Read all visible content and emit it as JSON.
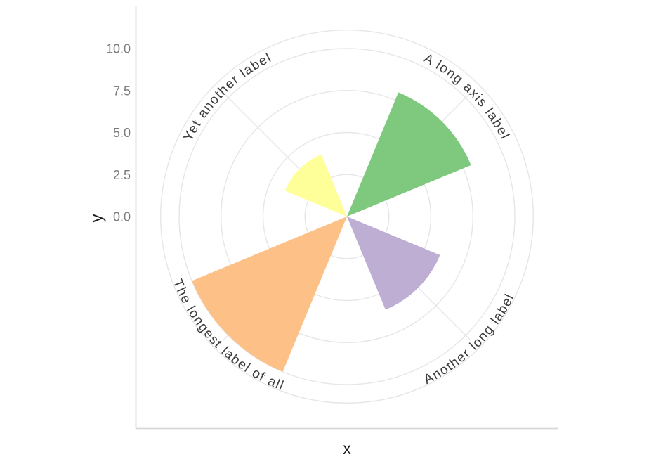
{
  "chart_data": {
    "type": "polar_bar",
    "title": "",
    "xlabel": "x",
    "ylabel": "y",
    "categories": [
      "A long axis label",
      "Another long label",
      "The longest label of all",
      "Yet another label"
    ],
    "values": [
      8,
      6,
      10,
      4
    ],
    "colors": [
      "#7FC97F",
      "#BEAED4",
      "#FDC086",
      "#FFFF99"
    ],
    "palette": "Accent",
    "category_center_angles_deg": [
      45,
      135,
      225,
      315
    ],
    "bar_angular_width_deg": 45,
    "r_ticks": [
      0,
      2.5,
      5,
      7.5,
      10
    ],
    "r_tick_labels": [
      "0.0",
      "2.5",
      "5.0",
      "7.5",
      "10.0"
    ],
    "r_range": [
      0,
      11.1
    ],
    "grid_circle_values": [
      2.5,
      5,
      7.5,
      10,
      11.1
    ],
    "spoke_angles_deg": [
      45,
      135,
      225,
      315
    ],
    "grid": true,
    "legend": false
  },
  "style": {
    "background": "#FFFFFF",
    "grid_color": "#E6E6E6",
    "axis_line_color": "#D7D7D7",
    "tick_label_color": "#7A7A7A",
    "category_label_color": "#3C3C3C",
    "axis_title_color": "#1C1C1C"
  }
}
